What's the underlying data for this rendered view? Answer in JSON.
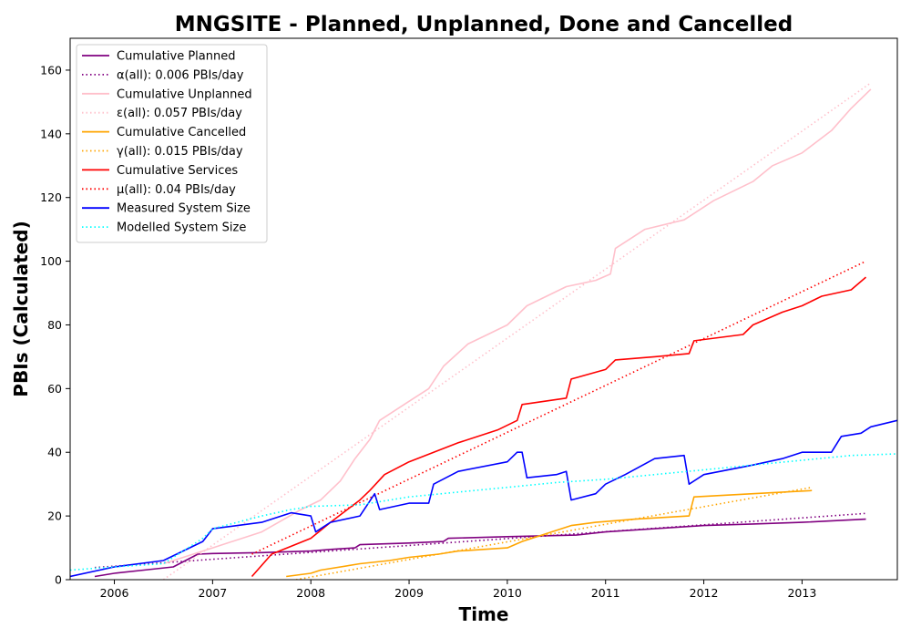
{
  "chart_data": {
    "type": "line",
    "title": "MNGSITE - Planned, Unplanned, Done  and Cancelled",
    "xlabel": "Time",
    "ylabel": "PBIs (Calculated)",
    "xlim": [
      2005.55,
      2013.97
    ],
    "ylim": [
      0,
      170
    ],
    "x_ticks": [
      2006,
      2007,
      2008,
      2009,
      2010,
      2011,
      2012,
      2013
    ],
    "x_tick_labels": [
      "2006",
      "2007",
      "2008",
      "2009",
      "2010",
      "2011",
      "2012",
      "2013"
    ],
    "y_ticks": [
      0,
      20,
      40,
      60,
      80,
      100,
      120,
      140,
      160
    ],
    "y_tick_labels": [
      "0",
      "20",
      "40",
      "60",
      "80",
      "100",
      "120",
      "140",
      "160"
    ],
    "grid": false,
    "legend_position": "top-left",
    "series": [
      {
        "name": "Cumulative Planned",
        "color": "#800080",
        "style": "solid",
        "x": [
          2005.8,
          2006.0,
          2006.3,
          2006.6,
          2006.85,
          2007.0,
          2007.5,
          2008.0,
          2008.2,
          2008.45,
          2008.5,
          2009.0,
          2009.35,
          2009.4,
          2010.0,
          2010.7,
          2011.0,
          2011.5,
          2012.0,
          2012.5,
          2013.0,
          2013.65
        ],
        "y": [
          1,
          2,
          3,
          4,
          8,
          8.2,
          8.5,
          9,
          9.5,
          10,
          11,
          11.5,
          12,
          13,
          13.5,
          14,
          15,
          16,
          17,
          17.5,
          18,
          19
        ]
      },
      {
        "name": "α(all): 0.006 PBIs/day",
        "color": "#800080",
        "style": "dotted",
        "x": [
          2005.8,
          2013.65
        ],
        "y": [
          3.8,
          20.8
        ]
      },
      {
        "name": "Cumulative Unplanned",
        "color": "#ffc0cb",
        "style": "solid",
        "x": [
          2006.5,
          2007.0,
          2007.5,
          2007.9,
          2008.1,
          2008.3,
          2008.45,
          2008.6,
          2008.7,
          2008.8,
          2009.0,
          2009.2,
          2009.35,
          2009.6,
          2009.8,
          2010.0,
          2010.2,
          2010.4,
          2010.6,
          2010.9,
          2011.05,
          2011.1,
          2011.4,
          2011.8,
          2012.1,
          2012.5,
          2012.7,
          2013.0,
          2013.3,
          2013.5,
          2013.7
        ],
        "y": [
          5,
          10,
          15,
          22,
          25,
          31,
          38,
          44,
          50,
          52,
          56,
          60,
          67,
          74,
          77,
          80,
          86,
          89,
          92,
          94,
          96,
          104,
          110,
          113,
          119,
          125,
          130,
          134,
          141,
          148,
          154
        ]
      },
      {
        "name": "ε(all): 0.057 PBIs/day",
        "color": "#ffc0cb",
        "style": "dotted",
        "x": [
          2006.5,
          2013.7
        ],
        "y": [
          0,
          156
        ]
      },
      {
        "name": "Cumulative Cancelled",
        "color": "#ffa500",
        "style": "solid",
        "x": [
          2007.75,
          2008.0,
          2008.1,
          2008.5,
          2008.8,
          2009.0,
          2009.3,
          2009.5,
          2010.0,
          2010.15,
          2010.65,
          2010.9,
          2011.3,
          2011.85,
          2011.9,
          2012.5,
          2013.1
        ],
        "y": [
          1,
          2,
          3,
          5,
          6,
          7,
          8,
          9,
          10,
          12,
          17,
          18,
          19,
          20,
          26,
          27,
          28
        ]
      },
      {
        "name": "γ(all): 0.015 PBIs/day",
        "color": "#ffa500",
        "style": "dotted",
        "x": [
          2007.85,
          2013.1
        ],
        "y": [
          0,
          29
        ]
      },
      {
        "name": "Cumulative Services",
        "color": "#ff0000",
        "style": "solid",
        "x": [
          2007.4,
          2007.6,
          2008.0,
          2008.2,
          2008.5,
          2008.6,
          2008.75,
          2009.0,
          2009.25,
          2009.5,
          2009.9,
          2010.1,
          2010.15,
          2010.6,
          2010.65,
          2011.0,
          2011.1,
          2011.5,
          2011.85,
          2011.9,
          2012.4,
          2012.5,
          2012.8,
          2013.0,
          2013.2,
          2013.5,
          2013.65
        ],
        "y": [
          1,
          8,
          13,
          18,
          25,
          28,
          33,
          37,
          40,
          43,
          47,
          50,
          55,
          57,
          63,
          66,
          69,
          70,
          71,
          75,
          77,
          80,
          84,
          86,
          89,
          91,
          95
        ]
      },
      {
        "name": "μ(all): 0.04 PBIs/day",
        "color": "#ff0000",
        "style": "dotted",
        "x": [
          2007.4,
          2013.65
        ],
        "y": [
          8,
          100
        ]
      },
      {
        "name": "Measured System Size",
        "color": "#0000ff",
        "style": "solid",
        "x": [
          2005.55,
          2006.0,
          2006.5,
          2006.9,
          2007.0,
          2007.5,
          2007.8,
          2008.0,
          2008.05,
          2008.2,
          2008.5,
          2008.65,
          2008.7,
          2009.0,
          2009.2,
          2009.25,
          2009.5,
          2010.0,
          2010.1,
          2010.15,
          2010.2,
          2010.5,
          2010.6,
          2010.65,
          2010.9,
          2011.0,
          2011.2,
          2011.5,
          2011.8,
          2011.85,
          2012.0,
          2012.5,
          2012.8,
          2013.0,
          2013.3,
          2013.4,
          2013.6,
          2013.7,
          2013.97
        ],
        "y": [
          1,
          4,
          6,
          12,
          16,
          18,
          21,
          20,
          15,
          18,
          20,
          27,
          22,
          24,
          24,
          30,
          34,
          37,
          40,
          40,
          32,
          33,
          34,
          25,
          27,
          30,
          33,
          38,
          39,
          30,
          33,
          36,
          38,
          40,
          40,
          45,
          46,
          48,
          50
        ]
      },
      {
        "name": "Modelled System Size",
        "color": "#00ffff",
        "style": "dotted",
        "x": [
          2005.55,
          2006.0,
          2006.5,
          2006.9,
          2007.0,
          2007.5,
          2007.8,
          2008.0,
          2008.5,
          2009.0,
          2009.5,
          2010.0,
          2010.5,
          2011.0,
          2011.5,
          2012.0,
          2012.5,
          2013.0,
          2013.5,
          2013.97
        ],
        "y": [
          3,
          4,
          5,
          13,
          16,
          20,
          22,
          23,
          23.5,
          26,
          27.5,
          29,
          30.5,
          31.5,
          33,
          34.5,
          36,
          37.5,
          39,
          39.5
        ]
      }
    ]
  }
}
